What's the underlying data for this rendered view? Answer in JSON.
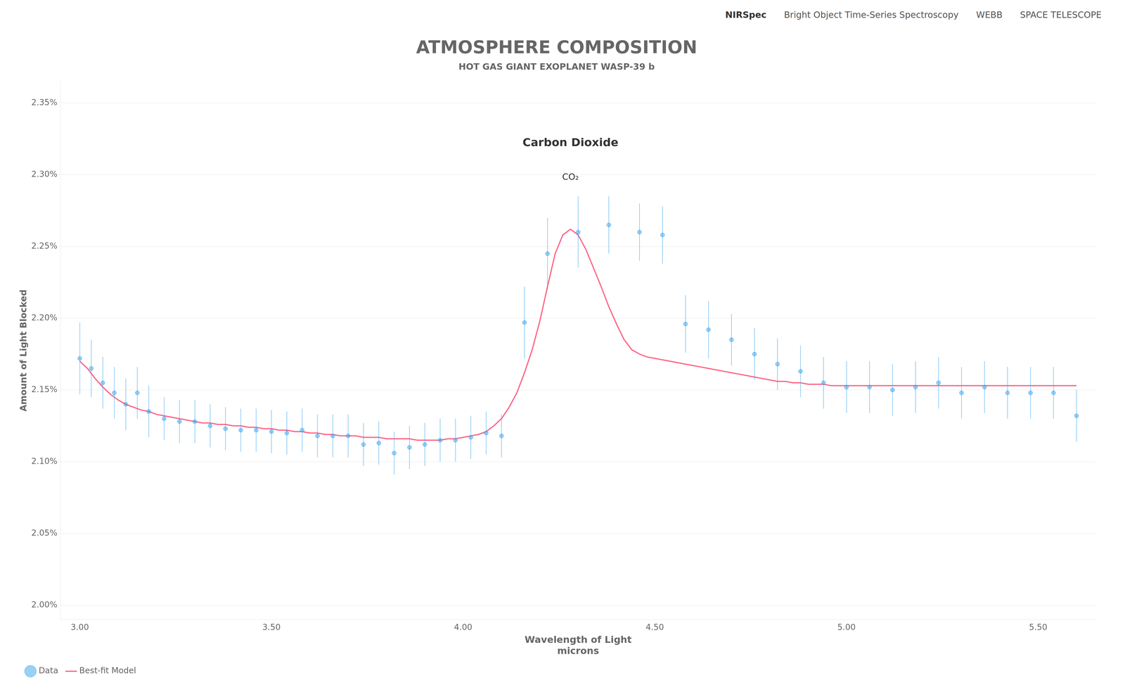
{
  "chart_data": {
    "type": "line",
    "title": "ATMOSPHERE COMPOSITION",
    "subtitle": "HOT GAS GIANT EXOPLANET WASP-39 b",
    "xlabel": [
      "Wavelength of Light",
      "microns"
    ],
    "ylabel": "Amount of Light Blocked",
    "annotations": [
      {
        "text": "Carbon Dioxide",
        "x": 4.28,
        "y": 0.02318
      },
      {
        "text": "CO₂",
        "x": 4.28,
        "y": 0.02295
      },
      {
        "text": "NIRSpec"
      },
      {
        "text": "Bright Object Time-Series Spectroscopy"
      },
      {
        "text": "WEBB"
      },
      {
        "text": "SPACE TELESCOPE"
      }
    ],
    "xlim": [
      2.95,
      5.65
    ],
    "ylim": [
      0.0199,
      0.02365
    ],
    "xticks": [
      {
        "value": 3.0,
        "label": "3.00"
      },
      {
        "value": 3.5,
        "label": "3.50"
      },
      {
        "value": 4.0,
        "label": "4.00"
      },
      {
        "value": 4.5,
        "label": "4.50"
      },
      {
        "value": 5.0,
        "label": "5.00"
      },
      {
        "value": 5.5,
        "label": "5.50"
      }
    ],
    "yticks": [
      {
        "value": 0.02,
        "label": "2.00%"
      },
      {
        "value": 0.0205,
        "label": "2.05%"
      },
      {
        "value": 0.021,
        "label": "2.10%"
      },
      {
        "value": 0.0215,
        "label": "2.15%"
      },
      {
        "value": 0.022,
        "label": "2.20%"
      },
      {
        "value": 0.0225,
        "label": "2.25%"
      },
      {
        "value": 0.023,
        "label": "2.30%"
      },
      {
        "value": 0.0235,
        "label": "2.35%"
      }
    ],
    "grid": "y",
    "legend": "lower left",
    "series": [
      {
        "name": "Data",
        "type": "scatter",
        "marker": "circle",
        "x": [
          3.0,
          3.03,
          3.06,
          3.09,
          3.12,
          3.15,
          3.18,
          3.22,
          3.26,
          3.3,
          3.34,
          3.38,
          3.42,
          3.46,
          3.5,
          3.54,
          3.58,
          3.62,
          3.66,
          3.7,
          3.74,
          3.78,
          3.82,
          3.86,
          3.9,
          3.94,
          3.98,
          4.02,
          4.06,
          4.1,
          4.16,
          4.22,
          4.3,
          4.38,
          4.46,
          4.52,
          4.58,
          4.64,
          4.7,
          4.76,
          4.82,
          4.88,
          4.94,
          5.0,
          5.06,
          5.12,
          5.18,
          5.24,
          5.3,
          5.36,
          5.42,
          5.48,
          5.54,
          5.6
        ],
        "values": [
          0.02172,
          0.02165,
          0.02155,
          0.02148,
          0.0214,
          0.02148,
          0.02135,
          0.0213,
          0.02128,
          0.02128,
          0.02125,
          0.02123,
          0.02122,
          0.02122,
          0.02121,
          0.0212,
          0.02122,
          0.02118,
          0.02118,
          0.02118,
          0.02112,
          0.02113,
          0.02106,
          0.0211,
          0.02112,
          0.02115,
          0.02115,
          0.02117,
          0.0212,
          0.02118,
          0.02197,
          0.02245,
          0.0226,
          0.02265,
          0.0226,
          0.02258,
          0.02196,
          0.02192,
          0.02185,
          0.02175,
          0.02168,
          0.02163,
          0.02155,
          0.02152,
          0.02152,
          0.0215,
          0.02152,
          0.02155,
          0.02148,
          0.02152,
          0.02148,
          0.02148,
          0.02148,
          0.02132
        ],
        "yerr": [
          0.00025,
          0.0002,
          0.00018,
          0.00018,
          0.00018,
          0.00018,
          0.00018,
          0.00015,
          0.00015,
          0.00015,
          0.00015,
          0.00015,
          0.00015,
          0.00015,
          0.00015,
          0.00015,
          0.00015,
          0.00015,
          0.00015,
          0.00015,
          0.00015,
          0.00015,
          0.00015,
          0.00015,
          0.00015,
          0.00015,
          0.00015,
          0.00015,
          0.00015,
          0.00015,
          0.00025,
          0.00025,
          0.00025,
          0.0002,
          0.0002,
          0.0002,
          0.0002,
          0.0002,
          0.00018,
          0.00018,
          0.00018,
          0.00018,
          0.00018,
          0.00018,
          0.00018,
          0.00018,
          0.00018,
          0.00018,
          0.00018,
          0.00018,
          0.00018,
          0.00018,
          0.00018,
          0.00018
        ]
      },
      {
        "name": "Best-fit Model",
        "type": "line",
        "marker": "none",
        "line_style": "solid",
        "x": [
          3.0,
          3.02,
          3.04,
          3.06,
          3.08,
          3.1,
          3.12,
          3.14,
          3.16,
          3.18,
          3.2,
          3.22,
          3.24,
          3.26,
          3.28,
          3.3,
          3.32,
          3.34,
          3.36,
          3.38,
          3.4,
          3.42,
          3.44,
          3.46,
          3.48,
          3.5,
          3.52,
          3.54,
          3.56,
          3.58,
          3.6,
          3.62,
          3.64,
          3.66,
          3.68,
          3.7,
          3.72,
          3.74,
          3.76,
          3.78,
          3.8,
          3.82,
          3.84,
          3.86,
          3.88,
          3.9,
          3.92,
          3.94,
          3.96,
          3.98,
          4.0,
          4.02,
          4.04,
          4.06,
          4.08,
          4.1,
          4.12,
          4.14,
          4.16,
          4.18,
          4.2,
          4.22,
          4.24,
          4.26,
          4.28,
          4.3,
          4.32,
          4.34,
          4.36,
          4.38,
          4.4,
          4.42,
          4.44,
          4.46,
          4.48,
          4.5,
          4.52,
          4.54,
          4.56,
          4.58,
          4.6,
          4.62,
          4.64,
          4.66,
          4.68,
          4.7,
          4.72,
          4.74,
          4.76,
          4.78,
          4.8,
          4.82,
          4.84,
          4.86,
          4.88,
          4.9,
          4.92,
          4.94,
          4.96,
          4.98,
          5.0,
          5.02,
          5.04,
          5.06,
          5.08,
          5.1,
          5.12,
          5.14,
          5.16,
          5.18,
          5.2,
          5.22,
          5.24,
          5.26,
          5.28,
          5.3,
          5.32,
          5.34,
          5.36,
          5.38,
          5.4,
          5.42,
          5.44,
          5.46,
          5.48,
          5.5,
          5.52,
          5.54,
          5.56,
          5.58,
          5.6
        ],
        "values": [
          0.0217,
          0.02165,
          0.02158,
          0.02152,
          0.02147,
          0.02143,
          0.0214,
          0.02138,
          0.02136,
          0.02135,
          0.02133,
          0.02132,
          0.02131,
          0.0213,
          0.02129,
          0.02128,
          0.02127,
          0.02127,
          0.02126,
          0.02126,
          0.02125,
          0.02125,
          0.02124,
          0.02124,
          0.02123,
          0.02123,
          0.02122,
          0.02122,
          0.02121,
          0.02121,
          0.0212,
          0.0212,
          0.02119,
          0.02119,
          0.02118,
          0.02118,
          0.02118,
          0.02117,
          0.02117,
          0.02117,
          0.02116,
          0.02116,
          0.02116,
          0.02116,
          0.02115,
          0.02115,
          0.02115,
          0.02115,
          0.02116,
          0.02116,
          0.02117,
          0.02118,
          0.02119,
          0.02121,
          0.02125,
          0.0213,
          0.02138,
          0.02148,
          0.02162,
          0.02178,
          0.02198,
          0.02222,
          0.02245,
          0.02258,
          0.02262,
          0.02258,
          0.02248,
          0.02235,
          0.02222,
          0.02208,
          0.02196,
          0.02185,
          0.02178,
          0.02175,
          0.02173,
          0.02172,
          0.02171,
          0.0217,
          0.02169,
          0.02168,
          0.02167,
          0.02166,
          0.02165,
          0.02164,
          0.02163,
          0.02162,
          0.02161,
          0.0216,
          0.02159,
          0.02158,
          0.02157,
          0.02156,
          0.02156,
          0.02155,
          0.02155,
          0.02154,
          0.02154,
          0.02154,
          0.02153,
          0.02153,
          0.02153,
          0.02153,
          0.02153,
          0.02153,
          0.02153,
          0.02153,
          0.02153,
          0.02153,
          0.02153,
          0.02153,
          0.02153,
          0.02153,
          0.02153,
          0.02153,
          0.02153,
          0.02153,
          0.02153,
          0.02153,
          0.02153,
          0.02153,
          0.02153,
          0.02153,
          0.02153,
          0.02153,
          0.02153,
          0.02153,
          0.02153,
          0.02153,
          0.02153,
          0.02153,
          0.02153
        ]
      }
    ]
  }
}
